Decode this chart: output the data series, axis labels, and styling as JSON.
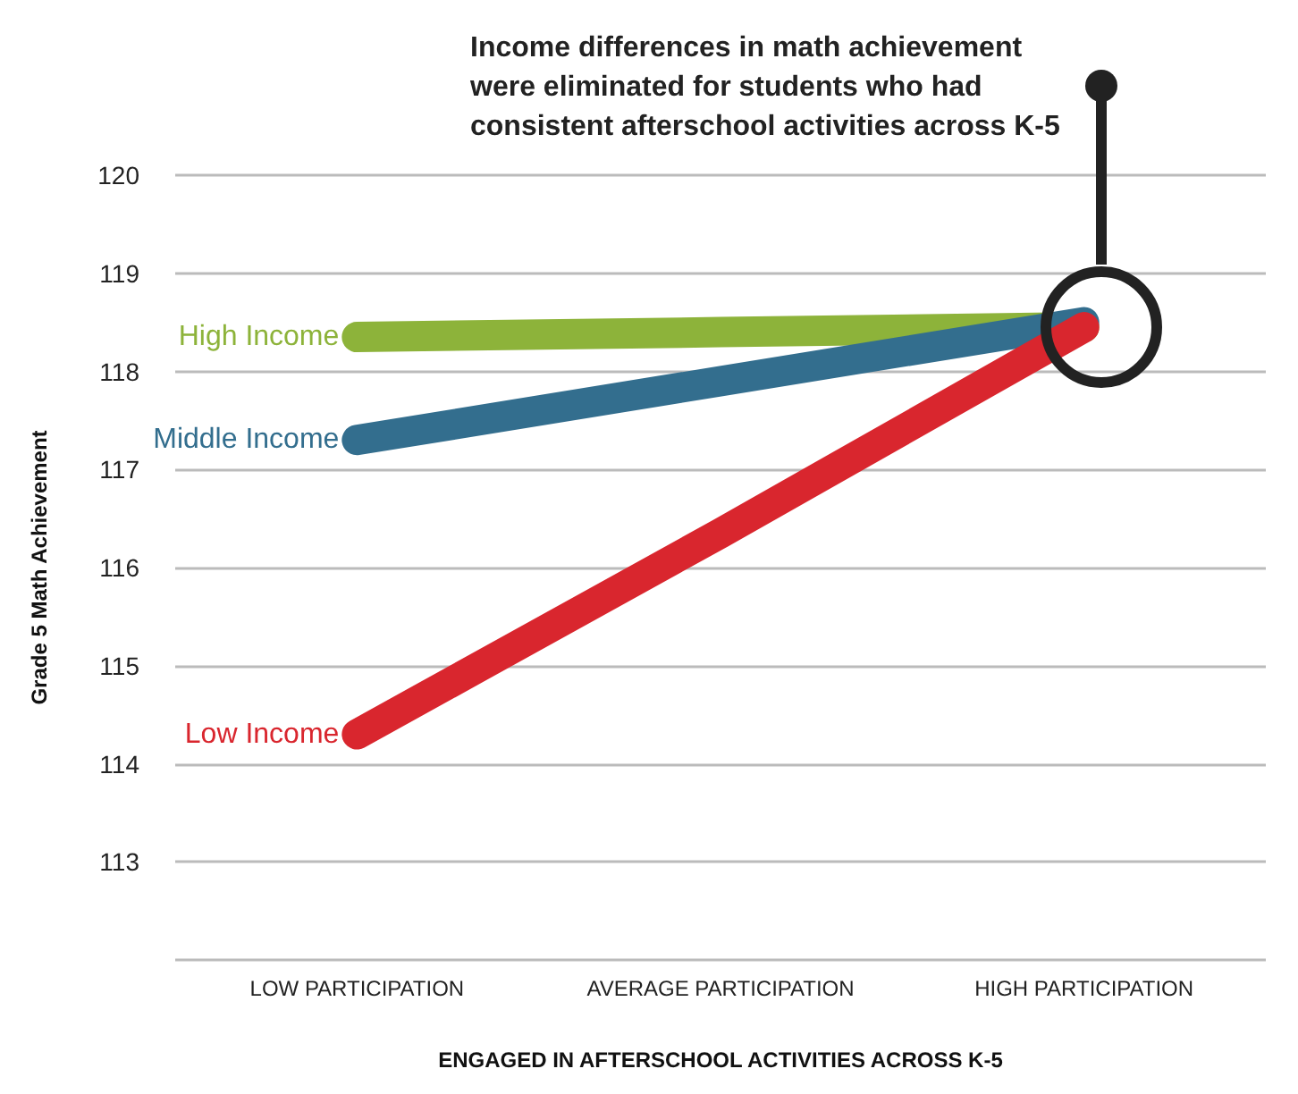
{
  "chart_data": {
    "type": "line",
    "ylabel": "Grade 5 Math Achievement",
    "xlabel": "ENGAGED IN AFTERSCHOOL ACTIVITIES ACROSS K-5",
    "categories": [
      "LOW PARTICIPATION",
      "AVERAGE PARTICIPATION",
      "HIGH PARTICIPATION"
    ],
    "series": [
      {
        "name": "High Income",
        "color": "#8db33a",
        "values": [
          118.35,
          118.4,
          118.45
        ]
      },
      {
        "name": "Middle Income",
        "color": "#336e8e",
        "values": [
          117.3,
          117.9,
          118.5
        ]
      },
      {
        "name": "Low Income",
        "color": "#d9262e",
        "values": [
          114.3,
          116.35,
          118.45
        ]
      }
    ],
    "ylim": [
      112,
      120
    ],
    "yticks": [
      {
        "value": 112,
        "label": null
      },
      113,
      114,
      115,
      116,
      117,
      118,
      119,
      120
    ],
    "grid": "y",
    "legend": false,
    "marker": "none",
    "annotations": [
      "Income differences in math achievement\nwere eliminated for students who had\nconsistent afterschool activities across K-5"
    ]
  }
}
